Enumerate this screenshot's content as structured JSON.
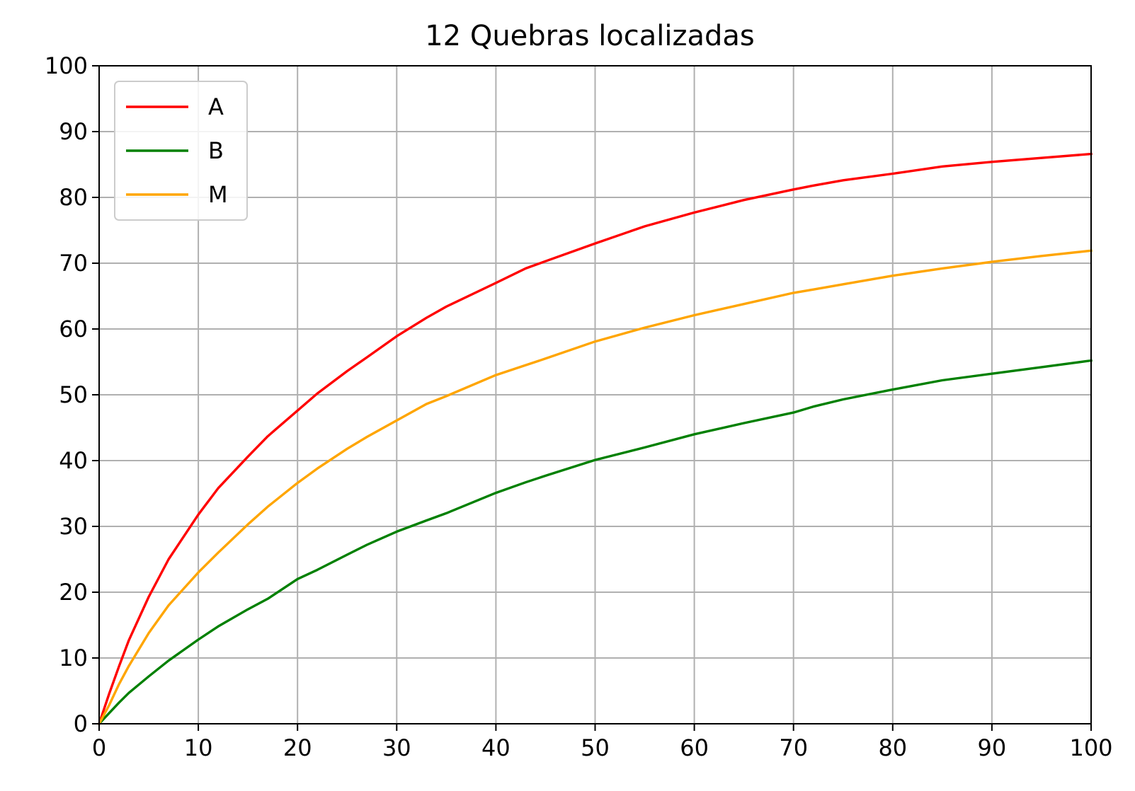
{
  "chart_data": {
    "type": "line",
    "title": "12 Quebras localizadas",
    "xlabel": "",
    "ylabel": "",
    "xlim": [
      0,
      100
    ],
    "ylim": [
      0,
      100
    ],
    "xticks": [
      0,
      10,
      20,
      30,
      40,
      50,
      60,
      70,
      80,
      90,
      100
    ],
    "yticks": [
      0,
      10,
      20,
      30,
      40,
      50,
      60,
      70,
      80,
      90,
      100
    ],
    "grid": true,
    "legend_position": "upper-left",
    "x": [
      0,
      1,
      2,
      3,
      5,
      7,
      10,
      12,
      15,
      17,
      20,
      22,
      25,
      27,
      30,
      33,
      35,
      40,
      43,
      45,
      50,
      55,
      60,
      65,
      70,
      72,
      75,
      80,
      85,
      90,
      95,
      100
    ],
    "series": [
      {
        "name": "A",
        "color": "#ff0000",
        "values": [
          0,
          4.5,
          8.7,
          12.7,
          19.3,
          25.0,
          31.8,
          35.8,
          40.6,
          43.7,
          47.6,
          50.2,
          53.6,
          55.7,
          58.9,
          61.7,
          63.4,
          67.0,
          69.2,
          70.3,
          73.0,
          75.6,
          77.7,
          79.6,
          81.2,
          81.8,
          82.6,
          83.6,
          84.7,
          85.4,
          86.0,
          86.6
        ]
      },
      {
        "name": "B",
        "color": "#008000",
        "values": [
          0,
          1.6,
          3.2,
          4.7,
          7.2,
          9.6,
          12.8,
          14.8,
          17.4,
          19.0,
          22.0,
          23.4,
          25.7,
          27.2,
          29.2,
          30.9,
          32.0,
          35.1,
          36.7,
          37.7,
          40.1,
          42.0,
          44.0,
          45.7,
          47.3,
          48.2,
          49.3,
          50.8,
          52.2,
          53.2,
          54.2,
          55.2
        ]
      },
      {
        "name": "M",
        "color": "#ffa500",
        "values": [
          0,
          2.8,
          6.0,
          8.8,
          13.8,
          18.0,
          23.0,
          26.0,
          30.3,
          33.0,
          36.6,
          38.8,
          41.8,
          43.6,
          46.1,
          48.6,
          49.8,
          53.0,
          54.5,
          55.5,
          58.1,
          60.2,
          62.1,
          63.8,
          65.5,
          66.0,
          66.8,
          68.1,
          69.2,
          70.2,
          71.1,
          71.9
        ]
      }
    ]
  }
}
